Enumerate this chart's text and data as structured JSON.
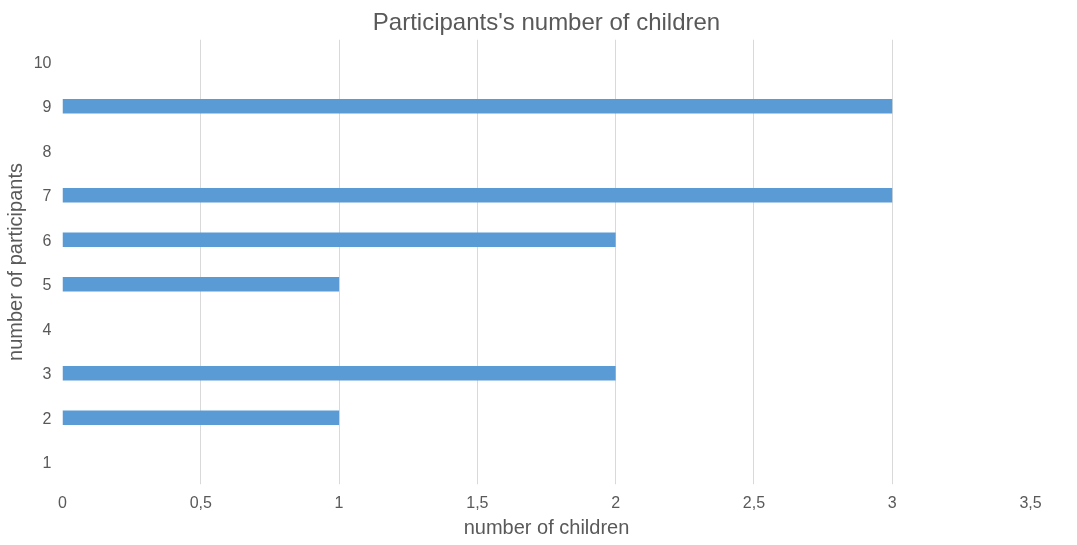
{
  "chart_data": {
    "type": "bar",
    "orientation": "horizontal",
    "title": "Participants's number of children",
    "xlabel": "number of children",
    "ylabel": "number of participants",
    "categories": [
      "10",
      "9",
      "8",
      "7",
      "6",
      "5",
      "4",
      "3",
      "2",
      "1"
    ],
    "values": [
      0,
      3,
      0,
      3,
      2,
      1,
      0,
      2,
      1,
      0
    ],
    "color": "#5b9bd5",
    "xlim": [
      0,
      3.5
    ],
    "xticks": [
      0,
      {
        "value": 0.5,
        "label": "0,5"
      },
      1,
      {
        "value": 1.5,
        "label": "1,5"
      },
      2,
      {
        "value": 2.5,
        "label": "2,5"
      },
      3,
      {
        "value": 3.5,
        "label": "3,5"
      }
    ],
    "grid": "x"
  }
}
